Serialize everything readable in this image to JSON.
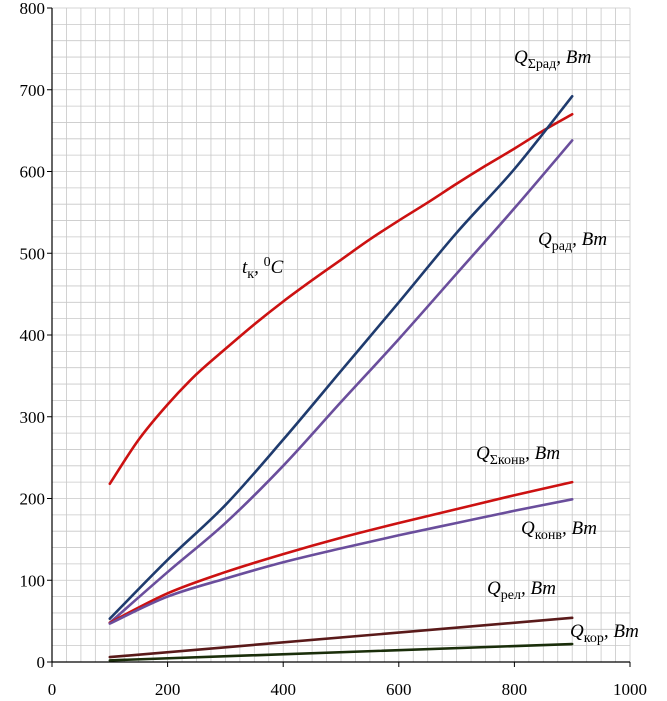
{
  "chart_data": {
    "type": "line",
    "xlim": [
      0,
      1000
    ],
    "ylim": [
      0,
      800
    ],
    "x_ticks": [
      0,
      200,
      400,
      600,
      800,
      1000
    ],
    "y_ticks": [
      0,
      100,
      200,
      300,
      400,
      500,
      600,
      700,
      800
    ],
    "grid": true,
    "series": [
      {
        "id": "t_k",
        "color": "#cc1111",
        "x": [
          100,
          150,
          200,
          250,
          300,
          350,
          400,
          450,
          500,
          550,
          600,
          650,
          700,
          750,
          800,
          850,
          900
        ],
        "values": [
          218,
          272,
          315,
          352,
          383,
          413,
          441,
          467,
          492,
          517,
          540,
          562,
          585,
          607,
          628,
          650,
          670
        ]
      },
      {
        "id": "Q_sum_rad",
        "color": "#1f3b6e",
        "x": [
          100,
          200,
          300,
          400,
          500,
          600,
          700,
          800,
          900
        ],
        "values": [
          53,
          125,
          192,
          272,
          356,
          440,
          525,
          603,
          692
        ]
      },
      {
        "id": "Q_rad",
        "color": "#6a4e9c",
        "x": [
          100,
          200,
          300,
          400,
          500,
          600,
          700,
          800,
          900
        ],
        "values": [
          48,
          110,
          170,
          240,
          318,
          395,
          475,
          555,
          638
        ]
      },
      {
        "id": "Q_sum_konv",
        "color": "#cc1111",
        "x": [
          100,
          200,
          300,
          400,
          500,
          600,
          700,
          800,
          900
        ],
        "values": [
          48,
          84,
          110,
          132,
          152,
          170,
          187,
          204,
          220
        ]
      },
      {
        "id": "Q_konv",
        "color": "#6a4e9c",
        "x": [
          100,
          200,
          300,
          400,
          500,
          600,
          700,
          800,
          900
        ],
        "values": [
          47,
          80,
          102,
          122,
          139,
          155,
          170,
          185,
          199
        ]
      },
      {
        "id": "Q_rel",
        "color": "#5a1a1a",
        "x": [
          100,
          900
        ],
        "values": [
          6,
          54
        ]
      },
      {
        "id": "Q_kor",
        "color": "#1a2e0a",
        "x": [
          100,
          900
        ],
        "values": [
          2,
          22
        ]
      }
    ],
    "labels": [
      {
        "id": "Q_sum_rad",
        "main": "Q",
        "sub": "Σрад",
        "unit": ", Вт"
      },
      {
        "id": "Q_rad",
        "main": "Q",
        "sub": "рад",
        "unit": ", Вт"
      },
      {
        "id": "t_k",
        "main": "t",
        "sub": "к",
        "sup": "0",
        "unit": "C"
      },
      {
        "id": "Q_sum_konv",
        "main": "Q",
        "sub": "Σконв",
        "unit": ", Вт"
      },
      {
        "id": "Q_konv",
        "main": "Q",
        "sub": "конв",
        "unit": ", Вт"
      },
      {
        "id": "Q_rel",
        "main": "Q",
        "sub": "рел",
        "unit": ", Вт"
      },
      {
        "id": "Q_kor",
        "main": "Q",
        "sub": "кор",
        "unit": ", Вт"
      }
    ]
  }
}
